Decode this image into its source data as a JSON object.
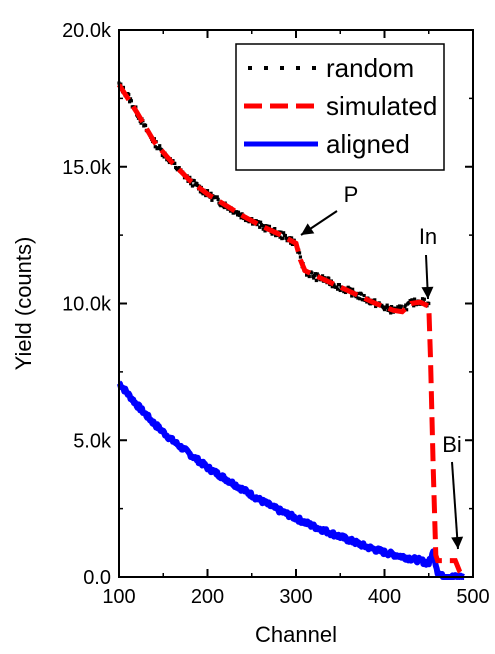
{
  "chart_data": {
    "type": "line",
    "xlabel": "Channel",
    "ylabel": "Yield (counts)",
    "xlim": [
      100,
      500
    ],
    "ylim": [
      0,
      20000
    ],
    "x_ticks": [
      100,
      200,
      300,
      400,
      500
    ],
    "x_tick_labels": [
      "100",
      "200",
      "300",
      "400",
      "500"
    ],
    "y_ticks": [
      0,
      5000,
      10000,
      15000,
      20000
    ],
    "y_tick_labels": [
      "0.0",
      "5.0k",
      "10.0k",
      "15.0k",
      "20.0k"
    ],
    "grid": false,
    "legend_position": "top-right",
    "series": [
      {
        "name": "random",
        "style": "points",
        "color": "#000000",
        "x": [
          100,
          110,
          120,
          130,
          140,
          150,
          160,
          170,
          180,
          190,
          200,
          210,
          220,
          230,
          240,
          250,
          260,
          270,
          280,
          290,
          300,
          305,
          310,
          320,
          330,
          340,
          350,
          360,
          370,
          380,
          390,
          400,
          410,
          420,
          430,
          440,
          450
        ],
        "y": [
          18000,
          17600,
          17000,
          16400,
          15900,
          15500,
          15150,
          14800,
          14500,
          14250,
          14000,
          13800,
          13600,
          13400,
          13200,
          13050,
          12850,
          12700,
          12550,
          12400,
          12200,
          11600,
          11200,
          11000,
          10900,
          10750,
          10600,
          10450,
          10300,
          10150,
          10000,
          9850,
          9750,
          9800,
          10000,
          10100,
          10000
        ]
      },
      {
        "name": "simulated",
        "style": "dashed",
        "color": "#ff0000",
        "x": [
          100,
          120,
          140,
          160,
          180,
          200,
          220,
          240,
          260,
          280,
          300,
          305,
          310,
          330,
          350,
          370,
          390,
          410,
          420,
          430,
          440,
          450,
          452,
          455,
          458,
          460,
          470,
          480,
          485,
          490
        ],
        "y": [
          18000,
          17000,
          15900,
          15150,
          14500,
          14000,
          13600,
          13200,
          12850,
          12550,
          12200,
          11600,
          11200,
          10900,
          10600,
          10300,
          10000,
          9750,
          9700,
          10000,
          10050,
          9900,
          8000,
          4000,
          800,
          600,
          600,
          600,
          200,
          0
        ]
      },
      {
        "name": "aligned",
        "style": "solid",
        "color": "#0000ff",
        "x": [
          100,
          120,
          140,
          160,
          180,
          200,
          220,
          240,
          260,
          280,
          300,
          320,
          340,
          360,
          380,
          400,
          420,
          440,
          450,
          455,
          460,
          465,
          470,
          480,
          490
        ],
        "y": [
          7100,
          6300,
          5600,
          5000,
          4500,
          4000,
          3600,
          3200,
          2800,
          2450,
          2150,
          1850,
          1600,
          1350,
          1100,
          900,
          750,
          600,
          500,
          900,
          200,
          30,
          10,
          0,
          0
        ]
      }
    ],
    "annotations": [
      {
        "text": "P",
        "x": 300,
        "y": 12200
      },
      {
        "text": "In",
        "x": 452,
        "y": 10000
      },
      {
        "text": "Bi",
        "x": 482,
        "y": 600
      }
    ]
  }
}
